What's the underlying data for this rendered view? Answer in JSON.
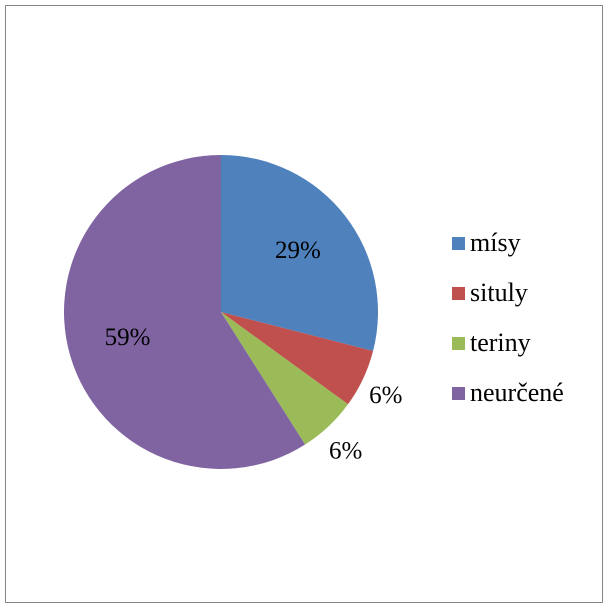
{
  "chart_data": {
    "type": "pie",
    "categories": [
      "mísy",
      "situly",
      "teriny",
      "neurčené"
    ],
    "values": [
      29,
      6,
      6,
      59
    ],
    "labels": [
      "29%",
      "6%",
      "6%",
      "59%"
    ],
    "colors": [
      "#4f81bd",
      "#c0504d",
      "#9bbb59",
      "#8064a2"
    ],
    "legend_position": "right"
  }
}
